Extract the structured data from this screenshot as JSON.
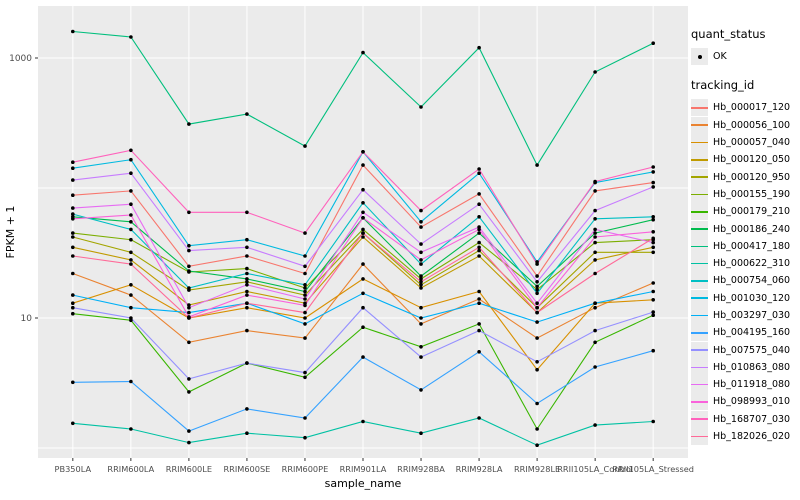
{
  "chart_data": {
    "type": "line",
    "title": "",
    "xlabel": "sample_name",
    "ylabel": "FPKM + 1",
    "y_scale": "log10",
    "y_labeled_breaks": [
      10,
      1000
    ],
    "y_gridline_breaks": [
      1,
      10,
      100,
      1000
    ],
    "panel_background": "#ebebeb",
    "gridline_color": "#ffffff",
    "axis_text_color": "#4d4d4d",
    "point_color": "#000000",
    "categories": [
      "PB350LA",
      "RRIM600LA",
      "RRIM600LE",
      "RRIM600SE",
      "RRIM600PE",
      "RRIM901LA",
      "RRIM928BA",
      "RRIM928LA",
      "RRIM928LE",
      "RRII105LA_Control",
      "RRII105LA_Stressed"
    ],
    "series": [
      {
        "name": "Hb_000017_120",
        "color": "#F8766D",
        "values": [
          88,
          95,
          25,
          30,
          22,
          150,
          50,
          90,
          21,
          95,
          110
        ]
      },
      {
        "name": "Hb_000056_100",
        "color": "#EA8331",
        "values": [
          22,
          15,
          6.5,
          8,
          7,
          26,
          9,
          14,
          7,
          12,
          18.6
        ]
      },
      {
        "name": "Hb_000057_040",
        "color": "#D89000",
        "values": [
          13,
          18,
          10,
          12,
          10,
          20,
          12,
          16,
          4,
          13,
          13.8
        ]
      },
      {
        "name": "Hb_000120_050",
        "color": "#C09B00",
        "values": [
          35,
          28,
          12.6,
          16,
          13,
          42,
          17,
          30,
          11,
          28,
          35
        ]
      },
      {
        "name": "Hb_000120_950",
        "color": "#A3A500",
        "values": [
          42,
          32,
          16.4,
          19,
          15,
          45,
          18,
          33,
          12,
          32,
          32
        ]
      },
      {
        "name": "Hb_000155_190",
        "color": "#7CAE00",
        "values": [
          45,
          40,
          22.6,
          24,
          17,
          48,
          20,
          38,
          16.5,
          38,
          40
        ]
      },
      {
        "name": "Hb_000179_210",
        "color": "#39B600",
        "values": [
          10.8,
          9.6,
          2.7,
          4.5,
          3.5,
          8.5,
          6,
          9,
          1.4,
          6.5,
          10.5
        ]
      },
      {
        "name": "Hb_000186_240",
        "color": "#00BB4E",
        "values": [
          60,
          55,
          23,
          20,
          16,
          59,
          21,
          45,
          17.5,
          45,
          57
        ]
      },
      {
        "name": "Hb_000417_180",
        "color": "#00BF7D",
        "values": [
          1600,
          1450,
          310,
          370,
          210,
          1100,
          420,
          1200,
          150,
          780,
          1300
        ]
      },
      {
        "name": "Hb_000622_310",
        "color": "#00C1A3",
        "values": [
          1.55,
          1.4,
          1.1,
          1.3,
          1.2,
          1.6,
          1.3,
          1.7,
          1.05,
          1.5,
          1.6
        ]
      },
      {
        "name": "Hb_000754_060",
        "color": "#00BFC4",
        "values": [
          63,
          48,
          17,
          22,
          18,
          77,
          26,
          60,
          15.5,
          58,
          60
        ]
      },
      {
        "name": "Hb_001030_120",
        "color": "#00BAE0",
        "values": [
          142,
          165,
          36,
          40,
          30,
          190,
          55,
          130,
          27,
          110,
          133
        ]
      },
      {
        "name": "Hb_003297_030",
        "color": "#00B0F6",
        "values": [
          15,
          12,
          11,
          13,
          9,
          15.5,
          10,
          13,
          9.3,
          13,
          16
        ]
      },
      {
        "name": "Hb_004195_160",
        "color": "#35A2FF",
        "values": [
          3.2,
          3.25,
          1.35,
          2,
          1.7,
          5,
          2.8,
          5.5,
          2.2,
          4.2,
          5.6
        ]
      },
      {
        "name": "Hb_007575_040",
        "color": "#9590FF",
        "values": [
          12,
          10,
          3.4,
          4.5,
          3.8,
          12,
          5,
          8,
          4.6,
          8,
          11.1
        ]
      },
      {
        "name": "Hb_010863_080",
        "color": "#C77CFF",
        "values": [
          115,
          130,
          33,
          35,
          25,
          97,
          37,
          75,
          19,
          67,
          102
        ]
      },
      {
        "name": "Hb_011918_080",
        "color": "#E76BF3",
        "values": [
          70,
          75,
          12,
          18,
          14,
          65,
          32,
          50,
          13,
          48,
          38
        ]
      },
      {
        "name": "Hb_098993_010",
        "color": "#FA62DB",
        "values": [
          58,
          62,
          10.2,
          15,
          12.5,
          59,
          28,
          48,
          12,
          42,
          46
        ]
      },
      {
        "name": "Hb_168707_030",
        "color": "#FF62BC",
        "values": [
          158,
          195,
          65,
          65,
          45,
          190,
          67,
          140,
          26,
          112,
          145
        ]
      },
      {
        "name": "Hb_182026_020",
        "color": "#FF6A98",
        "values": [
          30,
          26,
          10,
          13,
          11,
          45,
          19,
          35,
          11,
          22,
          41
        ]
      }
    ]
  },
  "legend": {
    "quant_status_title": "quant_status",
    "quant_status_value": "OK",
    "tracking_id_title": "tracking_id"
  }
}
